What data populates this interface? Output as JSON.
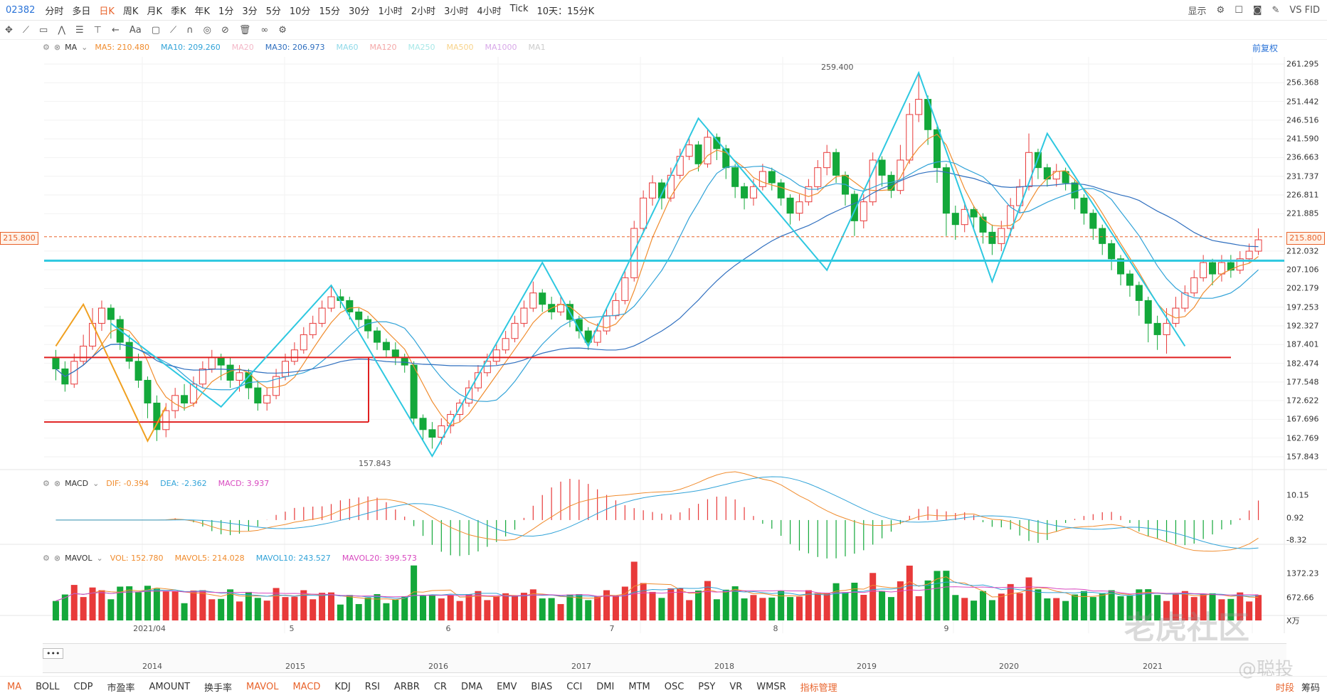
{
  "header": {
    "code": "02382",
    "periods": [
      "分时",
      "多日",
      "日K",
      "周K",
      "月K",
      "季K",
      "年K",
      "1分",
      "3分",
      "5分",
      "10分",
      "15分",
      "30分",
      "1小时",
      "2小时",
      "3小时",
      "4小时",
      "Tick",
      "10天：15分K"
    ],
    "active_period": "日K",
    "display_label": "显示",
    "vs_label": "VS FID"
  },
  "toolbar": {
    "font_label": "Aa",
    "restore_label": "前复权"
  },
  "legend_ma": {
    "name": "MA",
    "items": [
      {
        "label": "MA5: 210.480",
        "color": "#f08c2e"
      },
      {
        "label": "MA10: 209.260",
        "color": "#31a3d8"
      },
      {
        "label": "MA20",
        "color": "#f4b8c8"
      },
      {
        "label": "MA30: 206.973",
        "color": "#2f6fbf"
      },
      {
        "label": "MA60",
        "color": "#8fd9e8"
      },
      {
        "label": "MA120",
        "color": "#f4a8a8"
      },
      {
        "label": "MA250",
        "color": "#a8e8e8"
      },
      {
        "label": "MA500",
        "color": "#f8d38a"
      },
      {
        "label": "MA1000",
        "color": "#d8a8e8"
      },
      {
        "label": "MA1",
        "color": "#ccc"
      }
    ]
  },
  "legend_macd": {
    "name": "MACD",
    "items": [
      {
        "label": "DIF: -0.394",
        "color": "#f08c2e"
      },
      {
        "label": "DEA: -2.362",
        "color": "#31a3d8"
      },
      {
        "label": "MACD: 3.937",
        "color": "#d84ac0"
      }
    ]
  },
  "legend_vol": {
    "name": "MAVOL",
    "items": [
      {
        "label": "VOL: 152.780",
        "color": "#f08c2e"
      },
      {
        "label": "MAVOL5: 214.028",
        "color": "#f08c2e"
      },
      {
        "label": "MAVOL10: 243.527",
        "color": "#31a3d8"
      },
      {
        "label": "MAVOL20: 399.573",
        "color": "#d84ac0"
      }
    ]
  },
  "price_axis": [
    "261.295",
    "256.368",
    "251.442",
    "246.516",
    "241.590",
    "236.663",
    "231.737",
    "226.811",
    "221.885",
    "212.032",
    "207.106",
    "202.179",
    "197.253",
    "192.327",
    "187.401",
    "182.474",
    "177.548",
    "172.622",
    "167.696",
    "162.769",
    "157.843"
  ],
  "current_price": "215.800",
  "macd_axis": [
    "10.15",
    "0.92",
    "-8.32"
  ],
  "vol_axis": [
    "1372.23",
    "672.66",
    "X万"
  ],
  "annotations": {
    "high": "259.400",
    "low": "157.843"
  },
  "months": [
    "2021/04",
    "5",
    "6",
    "7",
    "8",
    "9"
  ],
  "years": [
    "2014",
    "2015",
    "2016",
    "2017",
    "2018",
    "2019",
    "2020",
    "2021"
  ],
  "bottom_tabs": [
    "MA",
    "BOLL",
    "CDP",
    "市盈率",
    "AMOUNT",
    "换手率",
    "MAVOL",
    "MACD",
    "KDJ",
    "RSI",
    "ARBR",
    "CR",
    "DMA",
    "EMV",
    "BIAS",
    "CCI",
    "DMI",
    "MTM",
    "OSC",
    "PSY",
    "VR",
    "WMSR",
    "指标管理"
  ],
  "bottom_active": [
    "MA",
    "MAVOL",
    "MACD"
  ],
  "bottom_right": [
    "时段",
    "筹码"
  ],
  "watermark": "老虎社区",
  "watermark2": "@聪投",
  "colors": {
    "up": "#e83a3a",
    "down": "#13a83a",
    "zigzag": "#2ec8e0",
    "support": "#e02020",
    "accent": "#e8632b"
  },
  "chart_data": {
    "type": "candlestick",
    "ylim": [
      157.843,
      261.295
    ],
    "candles": [
      [
        184,
        181,
        186,
        178
      ],
      [
        181,
        177,
        183,
        175
      ],
      [
        177,
        183,
        185,
        176
      ],
      [
        183,
        187,
        190,
        182
      ],
      [
        187,
        193,
        197,
        186
      ],
      [
        193,
        197,
        199,
        191
      ],
      [
        197,
        194,
        198,
        189
      ],
      [
        194,
        188,
        195,
        186
      ],
      [
        188,
        183,
        190,
        181
      ],
      [
        183,
        178,
        185,
        176
      ],
      [
        178,
        172,
        179,
        168
      ],
      [
        172,
        165,
        174,
        162
      ],
      [
        165,
        170,
        172,
        163
      ],
      [
        170,
        174,
        176,
        168
      ],
      [
        174,
        172,
        177,
        170
      ],
      [
        172,
        177,
        179,
        171
      ],
      [
        177,
        181,
        183,
        176
      ],
      [
        181,
        184,
        186,
        180
      ],
      [
        184,
        182,
        185,
        178
      ],
      [
        182,
        178,
        184,
        176
      ],
      [
        178,
        180,
        182,
        175
      ],
      [
        180,
        176,
        181,
        173
      ],
      [
        176,
        172,
        178,
        170
      ],
      [
        172,
        174,
        176,
        170
      ],
      [
        174,
        179,
        181,
        173
      ],
      [
        179,
        183,
        185,
        178
      ],
      [
        183,
        186,
        188,
        182
      ],
      [
        186,
        190,
        192,
        185
      ],
      [
        190,
        193,
        195,
        189
      ],
      [
        193,
        197,
        199,
        192
      ],
      [
        197,
        200,
        203,
        196
      ],
      [
        200,
        199,
        202,
        197
      ],
      [
        199,
        196,
        200,
        194
      ],
      [
        196,
        194,
        197,
        192
      ],
      [
        194,
        191,
        195,
        189
      ],
      [
        191,
        188,
        192,
        186
      ],
      [
        188,
        186,
        189,
        184
      ],
      [
        186,
        184,
        188,
        182
      ],
      [
        184,
        182,
        185,
        180
      ],
      [
        182,
        168,
        183,
        166
      ],
      [
        168,
        165,
        169,
        162
      ],
      [
        165,
        163,
        167,
        160
      ],
      [
        163,
        166,
        168,
        161
      ],
      [
        166,
        169,
        170,
        164
      ],
      [
        169,
        172,
        173,
        167
      ],
      [
        172,
        176,
        178,
        171
      ],
      [
        176,
        180,
        182,
        175
      ],
      [
        180,
        183,
        185,
        179
      ],
      [
        183,
        186,
        188,
        182
      ],
      [
        186,
        189,
        191,
        185
      ],
      [
        189,
        193,
        195,
        188
      ],
      [
        193,
        197,
        199,
        192
      ],
      [
        197,
        201,
        204,
        196
      ],
      [
        201,
        198,
        202,
        196
      ],
      [
        198,
        196,
        200,
        194
      ],
      [
        196,
        198,
        200,
        195
      ],
      [
        198,
        194,
        199,
        192
      ],
      [
        194,
        191,
        195,
        189
      ],
      [
        191,
        188,
        192,
        186
      ],
      [
        188,
        191,
        193,
        187
      ],
      [
        191,
        195,
        197,
        190
      ],
      [
        195,
        199,
        201,
        194
      ],
      [
        199,
        205,
        207,
        198
      ],
      [
        205,
        218,
        220,
        204
      ],
      [
        218,
        226,
        228,
        217
      ],
      [
        226,
        230,
        232,
        224
      ],
      [
        230,
        226,
        231,
        223
      ],
      [
        226,
        232,
        234,
        225
      ],
      [
        232,
        237,
        239,
        231
      ],
      [
        237,
        240,
        242,
        236
      ],
      [
        240,
        235,
        241,
        233
      ],
      [
        235,
        242,
        244,
        234
      ],
      [
        242,
        239,
        243,
        236
      ],
      [
        239,
        234,
        240,
        231
      ],
      [
        234,
        229,
        235,
        226
      ],
      [
        229,
        226,
        230,
        223
      ],
      [
        226,
        229,
        231,
        224
      ],
      [
        229,
        233,
        235,
        228
      ],
      [
        233,
        230,
        234,
        228
      ],
      [
        230,
        226,
        231,
        224
      ],
      [
        226,
        222,
        227,
        219
      ],
      [
        222,
        225,
        227,
        220
      ],
      [
        225,
        229,
        231,
        224
      ],
      [
        229,
        234,
        236,
        228
      ],
      [
        234,
        238,
        240,
        232
      ],
      [
        238,
        232,
        239,
        230
      ],
      [
        232,
        227,
        233,
        224
      ],
      [
        227,
        220,
        228,
        216
      ],
      [
        220,
        225,
        227,
        218
      ],
      [
        225,
        236,
        238,
        224
      ],
      [
        236,
        232,
        237,
        229
      ],
      [
        232,
        228,
        233,
        226
      ],
      [
        228,
        236,
        240,
        227
      ],
      [
        236,
        248,
        251,
        235
      ],
      [
        248,
        252,
        259,
        246
      ],
      [
        252,
        244,
        253,
        240
      ],
      [
        244,
        234,
        245,
        230
      ],
      [
        234,
        222,
        235,
        216
      ],
      [
        222,
        219,
        224,
        215
      ],
      [
        219,
        223,
        225,
        217
      ],
      [
        223,
        221,
        224,
        218
      ],
      [
        221,
        217,
        222,
        214
      ],
      [
        217,
        214,
        219,
        211
      ],
      [
        214,
        218,
        220,
        212
      ],
      [
        218,
        224,
        226,
        216
      ],
      [
        224,
        229,
        231,
        222
      ],
      [
        229,
        238,
        243,
        228
      ],
      [
        238,
        234,
        239,
        231
      ],
      [
        234,
        231,
        235,
        229
      ],
      [
        231,
        233,
        235,
        229
      ],
      [
        233,
        230,
        234,
        228
      ],
      [
        230,
        226,
        231,
        223
      ],
      [
        226,
        222,
        227,
        219
      ],
      [
        222,
        218,
        223,
        215
      ],
      [
        218,
        214,
        219,
        211
      ],
      [
        214,
        210,
        215,
        207
      ],
      [
        210,
        206,
        211,
        203
      ],
      [
        206,
        203,
        207,
        200
      ],
      [
        203,
        199,
        204,
        195
      ],
      [
        199,
        193,
        200,
        188
      ],
      [
        193,
        190,
        195,
        186
      ],
      [
        190,
        193,
        197,
        185
      ],
      [
        193,
        197,
        200,
        192
      ],
      [
        197,
        201,
        203,
        196
      ],
      [
        201,
        205,
        207,
        200
      ],
      [
        205,
        209,
        211,
        204
      ],
      [
        209,
        206,
        210,
        203
      ],
      [
        206,
        209,
        211,
        204
      ],
      [
        209,
        207,
        211,
        205
      ],
      [
        207,
        210,
        212,
        206
      ],
      [
        210,
        212,
        214,
        209
      ],
      [
        212,
        215,
        218,
        211
      ]
    ]
  }
}
